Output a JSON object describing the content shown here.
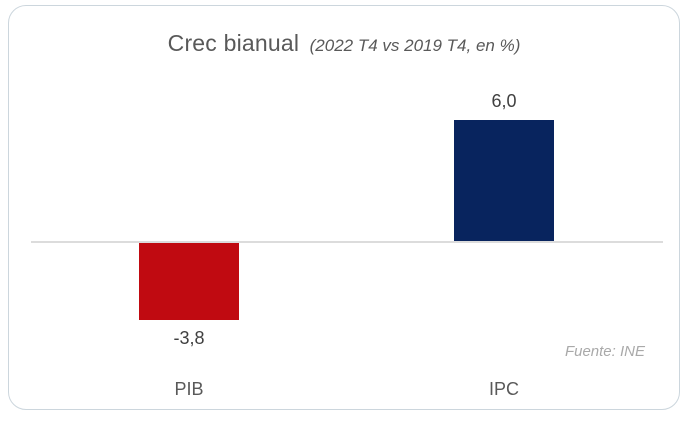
{
  "chart_data": {
    "type": "bar",
    "title": "Crec bianual",
    "subtitle": "(2022 T4 vs 2019 T4, en %)",
    "source": "Fuente: INE",
    "categories": [
      "PIB",
      "IPC"
    ],
    "values": [
      -3.8,
      6.0
    ],
    "value_labels": [
      "-3,8",
      "6,0"
    ],
    "bar_colors": [
      "#c00a11",
      "#08245e"
    ],
    "ylim": [
      -5,
      7.5
    ],
    "baseline": 0,
    "grid": false,
    "legend": "none",
    "axis_line_color": "#dcdcdc"
  }
}
